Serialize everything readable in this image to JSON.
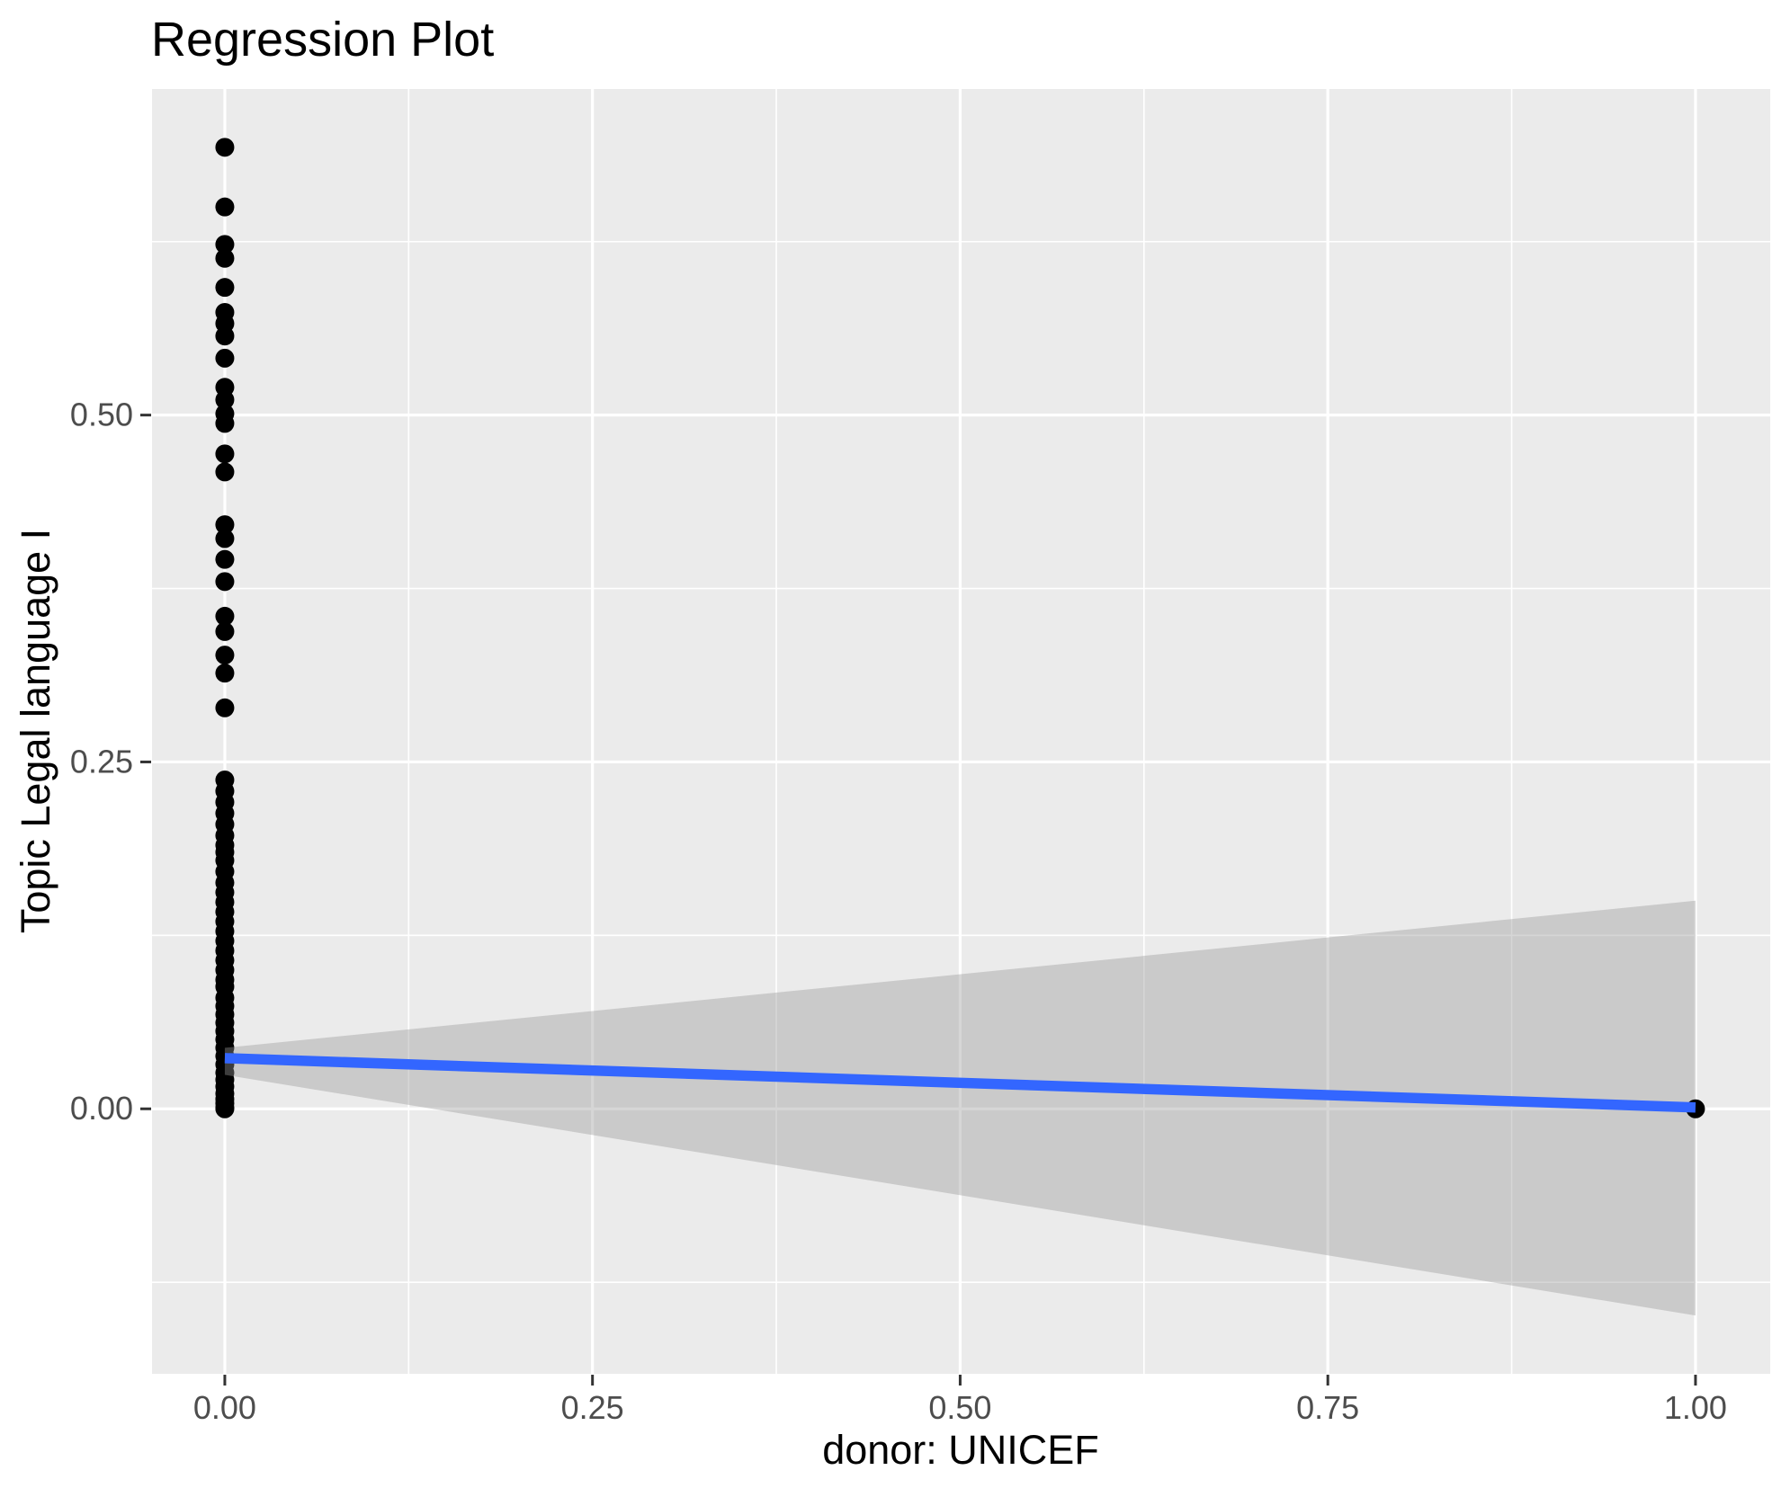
{
  "chart_data": {
    "type": "scatter",
    "title": "Regression Plot",
    "xlabel": "donor: UNICEF",
    "ylabel": "Topic Legal language I",
    "xlim": [
      -0.0495,
      1.0508
    ],
    "ylim": [
      -0.191,
      0.735
    ],
    "grid": true,
    "x_ticks": {
      "values": [
        0.0,
        0.25,
        0.5,
        0.75,
        1.0
      ],
      "labels": [
        "0.00",
        "0.25",
        "0.50",
        "0.75",
        "1.00"
      ]
    },
    "y_ticks": {
      "values": [
        0.0,
        0.25,
        0.5
      ],
      "labels": [
        "0.00",
        "0.25",
        "0.50"
      ]
    },
    "x_minor": [
      0.125,
      0.375,
      0.625,
      0.875
    ],
    "y_minor": [
      -0.125,
      0.125,
      0.375,
      0.625
    ],
    "series": [
      {
        "name": "observations at donor=0",
        "x_constant": 0,
        "y_values": [
          0.693,
          0.65,
          0.623,
          0.613,
          0.592,
          0.574,
          0.566,
          0.557,
          0.541,
          0.52,
          0.511,
          0.501,
          0.494,
          0.472,
          0.459,
          0.421,
          0.411,
          0.396,
          0.38,
          0.355,
          0.344,
          0.327,
          0.314,
          0.289,
          0.237,
          0.229,
          0.221,
          0.213,
          0.205,
          0.197,
          0.19,
          0.185,
          0.179,
          0.171,
          0.163,
          0.156,
          0.149,
          0.142,
          0.135,
          0.128,
          0.121,
          0.114,
          0.107,
          0.1,
          0.093,
          0.088,
          0.08,
          0.074,
          0.068,
          0.062,
          0.056,
          0.05,
          0.044,
          0.038,
          0.032,
          0.026,
          0.021,
          0.016,
          0.011,
          0.007,
          0.004,
          0.001,
          0.0
        ]
      },
      {
        "name": "observation at donor=1",
        "points": [
          [
            1.0,
            0.0
          ]
        ]
      }
    ],
    "regression_line": {
      "x": [
        0.0,
        1.0
      ],
      "y": [
        0.0365,
        0.001
      ]
    },
    "confidence_band": {
      "x": [
        0.0,
        1.0
      ],
      "upper": [
        0.044,
        0.15
      ],
      "lower": [
        0.0245,
        -0.149
      ]
    },
    "colors": {
      "background": "#FFFFFF",
      "panel_bg": "#EBEBEB",
      "gridline": "#FFFFFF",
      "point": "#000000",
      "regression_line": "#3366FF",
      "band_fill": "#999999",
      "band_opacity": 0.4,
      "tick_text": "#4D4D4D",
      "tick_mark": "#333333",
      "title_text": "#000000"
    }
  }
}
